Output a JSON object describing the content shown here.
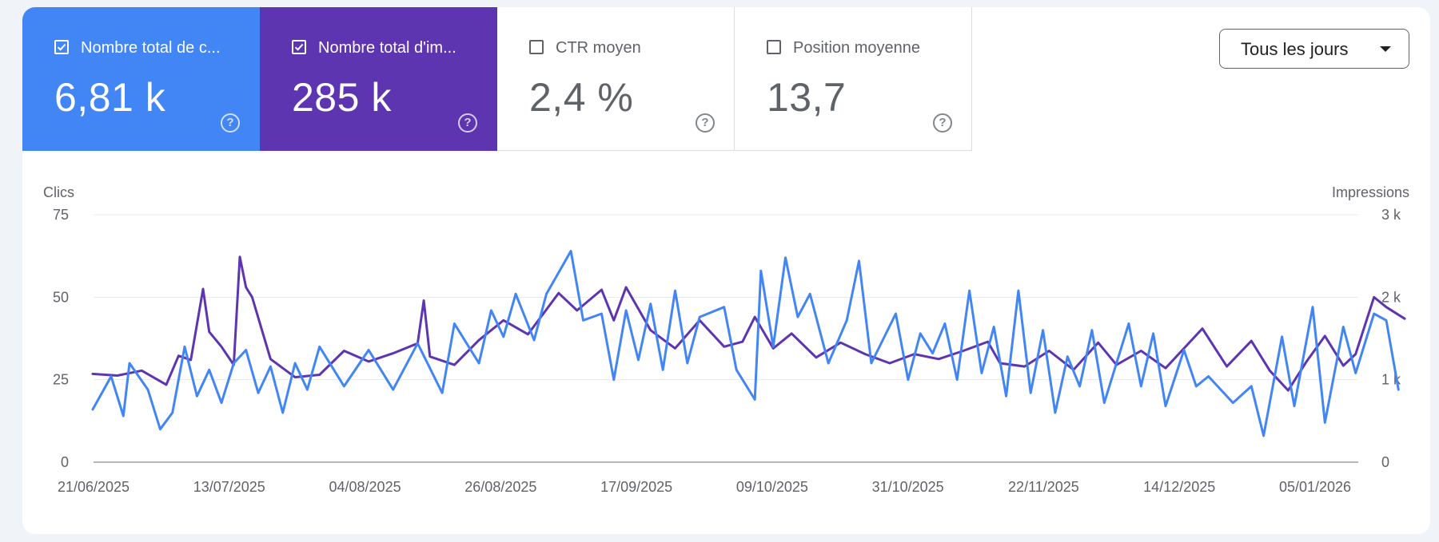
{
  "metrics": [
    {
      "label": "Nombre total de clics",
      "display_label": "Nombre total de c...",
      "value": "6,81 k",
      "checked": true,
      "color": "#4285f4"
    },
    {
      "label": "Nombre total d'impressions",
      "display_label": "Nombre total d'im...",
      "value": "285 k",
      "checked": true,
      "color": "#5e35b1"
    },
    {
      "label": "CTR moyen",
      "display_label": "CTR moyen",
      "value": "2,4 %",
      "checked": false
    },
    {
      "label": "Position moyenne",
      "display_label": "Position moyenne",
      "value": "13,7",
      "checked": false
    }
  ],
  "help_glyph": "?",
  "period_selector": {
    "label": "Tous les jours",
    "icon": "caret-down-icon"
  },
  "chart_data": {
    "type": "line",
    "left_axis": {
      "title": "Clics",
      "min": 0,
      "max": 75,
      "ticks": [
        "0",
        "25",
        "50",
        "75"
      ]
    },
    "right_axis": {
      "title": "Impressions",
      "min": 0,
      "max": 3000,
      "ticks": [
        "0",
        "1 k",
        "2 k",
        "3 k"
      ]
    },
    "x_start": "2025-06-21",
    "x_end": "2026-01-12",
    "x_tick_labels": [
      "21/06/2025",
      "13/07/2025",
      "04/08/2025",
      "26/08/2025",
      "17/09/2025",
      "09/10/2025",
      "31/10/2025",
      "22/11/2025",
      "14/12/2025",
      "05/01/2026"
    ],
    "grid": true,
    "series": [
      {
        "name": "Impressions",
        "axis": "right",
        "color": "#5e35b1",
        "keypoints": [
          [
            "2025-06-21",
            1070
          ],
          [
            "2025-06-25",
            1050
          ],
          [
            "2025-06-29",
            1110
          ],
          [
            "2025-07-03",
            940
          ],
          [
            "2025-07-05",
            1290
          ],
          [
            "2025-07-07",
            1240
          ],
          [
            "2025-07-09",
            2100
          ],
          [
            "2025-07-10",
            1580
          ],
          [
            "2025-07-12",
            1400
          ],
          [
            "2025-07-14",
            1180
          ],
          [
            "2025-07-15",
            2490
          ],
          [
            "2025-07-16",
            2120
          ],
          [
            "2025-07-17",
            2000
          ],
          [
            "2025-07-20",
            1250
          ],
          [
            "2025-07-24",
            1030
          ],
          [
            "2025-07-28",
            1060
          ],
          [
            "2025-08-01",
            1350
          ],
          [
            "2025-08-05",
            1220
          ],
          [
            "2025-08-09",
            1320
          ],
          [
            "2025-08-13",
            1440
          ],
          [
            "2025-08-14",
            1960
          ],
          [
            "2025-08-15",
            1280
          ],
          [
            "2025-08-19",
            1180
          ],
          [
            "2025-08-23",
            1480
          ],
          [
            "2025-08-27",
            1720
          ],
          [
            "2025-08-31",
            1550
          ],
          [
            "2025-09-05",
            2050
          ],
          [
            "2025-09-08",
            1840
          ],
          [
            "2025-09-12",
            2090
          ],
          [
            "2025-09-14",
            1720
          ],
          [
            "2025-09-16",
            2120
          ],
          [
            "2025-09-20",
            1600
          ],
          [
            "2025-09-24",
            1380
          ],
          [
            "2025-09-28",
            1720
          ],
          [
            "2025-10-02",
            1400
          ],
          [
            "2025-10-05",
            1460
          ],
          [
            "2025-10-07",
            1760
          ],
          [
            "2025-10-10",
            1380
          ],
          [
            "2025-10-13",
            1560
          ],
          [
            "2025-10-17",
            1270
          ],
          [
            "2025-10-21",
            1450
          ],
          [
            "2025-10-25",
            1310
          ],
          [
            "2025-10-29",
            1200
          ],
          [
            "2025-11-02",
            1310
          ],
          [
            "2025-11-06",
            1250
          ],
          [
            "2025-11-10",
            1350
          ],
          [
            "2025-11-14",
            1460
          ],
          [
            "2025-11-16",
            1200
          ],
          [
            "2025-11-20",
            1160
          ],
          [
            "2025-11-24",
            1350
          ],
          [
            "2025-11-28",
            1120
          ],
          [
            "2025-12-02",
            1450
          ],
          [
            "2025-12-05",
            1180
          ],
          [
            "2025-12-09",
            1350
          ],
          [
            "2025-12-13",
            1140
          ],
          [
            "2025-12-16",
            1380
          ],
          [
            "2025-12-19",
            1620
          ],
          [
            "2025-12-23",
            1160
          ],
          [
            "2025-12-27",
            1470
          ],
          [
            "2025-12-30",
            1110
          ],
          [
            "2026-01-02",
            870
          ],
          [
            "2026-01-05",
            1220
          ],
          [
            "2026-01-08",
            1530
          ],
          [
            "2026-01-11",
            1170
          ],
          [
            "2026-01-13",
            1310
          ],
          [
            "2026-01-16",
            2000
          ],
          [
            "2026-01-18",
            1880
          ],
          [
            "2026-01-21",
            1740
          ]
        ]
      },
      {
        "name": "Clics",
        "axis": "left",
        "color": "#4285f4",
        "keypoints": [
          [
            "2025-06-21",
            16
          ],
          [
            "2025-06-24",
            26
          ],
          [
            "2025-06-26",
            14
          ],
          [
            "2025-06-27",
            30
          ],
          [
            "2025-06-30",
            22
          ],
          [
            "2025-07-02",
            10
          ],
          [
            "2025-07-04",
            15
          ],
          [
            "2025-07-06",
            35
          ],
          [
            "2025-07-08",
            20
          ],
          [
            "2025-07-10",
            28
          ],
          [
            "2025-07-12",
            18
          ],
          [
            "2025-07-14",
            30
          ],
          [
            "2025-07-16",
            34
          ],
          [
            "2025-07-18",
            21
          ],
          [
            "2025-07-20",
            29
          ],
          [
            "2025-07-22",
            15
          ],
          [
            "2025-07-24",
            30
          ],
          [
            "2025-07-26",
            22
          ],
          [
            "2025-07-28",
            35
          ],
          [
            "2025-08-01",
            23
          ],
          [
            "2025-08-05",
            34
          ],
          [
            "2025-08-09",
            22
          ],
          [
            "2025-08-13",
            36
          ],
          [
            "2025-08-17",
            21
          ],
          [
            "2025-08-19",
            42
          ],
          [
            "2025-08-23",
            30
          ],
          [
            "2025-08-25",
            46
          ],
          [
            "2025-08-27",
            38
          ],
          [
            "2025-08-29",
            51
          ],
          [
            "2025-09-01",
            37
          ],
          [
            "2025-09-03",
            51
          ],
          [
            "2025-09-07",
            64
          ],
          [
            "2025-09-09",
            43
          ],
          [
            "2025-09-12",
            45
          ],
          [
            "2025-09-14",
            25
          ],
          [
            "2025-09-16",
            46
          ],
          [
            "2025-09-18",
            31
          ],
          [
            "2025-09-20",
            48
          ],
          [
            "2025-09-22",
            28
          ],
          [
            "2025-09-24",
            52
          ],
          [
            "2025-09-26",
            30
          ],
          [
            "2025-09-28",
            44
          ],
          [
            "2025-10-02",
            47
          ],
          [
            "2025-10-04",
            28
          ],
          [
            "2025-10-07",
            19
          ],
          [
            "2025-10-08",
            58
          ],
          [
            "2025-10-10",
            35
          ],
          [
            "2025-10-12",
            62
          ],
          [
            "2025-10-14",
            44
          ],
          [
            "2025-10-16",
            51
          ],
          [
            "2025-10-19",
            30
          ],
          [
            "2025-10-22",
            43
          ],
          [
            "2025-10-24",
            61
          ],
          [
            "2025-10-26",
            30
          ],
          [
            "2025-10-30",
            45
          ],
          [
            "2025-11-01",
            25
          ],
          [
            "2025-11-03",
            39
          ],
          [
            "2025-11-05",
            33
          ],
          [
            "2025-11-07",
            42
          ],
          [
            "2025-11-09",
            25
          ],
          [
            "2025-11-11",
            52
          ],
          [
            "2025-11-13",
            27
          ],
          [
            "2025-11-15",
            41
          ],
          [
            "2025-11-17",
            20
          ],
          [
            "2025-11-19",
            52
          ],
          [
            "2025-11-21",
            21
          ],
          [
            "2025-11-23",
            40
          ],
          [
            "2025-11-25",
            15
          ],
          [
            "2025-11-27",
            32
          ],
          [
            "2025-11-29",
            23
          ],
          [
            "2025-12-01",
            40
          ],
          [
            "2025-12-03",
            18
          ],
          [
            "2025-12-07",
            42
          ],
          [
            "2025-12-09",
            23
          ],
          [
            "2025-12-11",
            39
          ],
          [
            "2025-12-13",
            17
          ],
          [
            "2025-12-16",
            34
          ],
          [
            "2025-12-18",
            23
          ],
          [
            "2025-12-20",
            26
          ],
          [
            "2025-12-24",
            18
          ],
          [
            "2025-12-27",
            23
          ],
          [
            "2025-12-29",
            8
          ],
          [
            "2026-01-01",
            38
          ],
          [
            "2026-01-03",
            17
          ],
          [
            "2026-01-06",
            47
          ],
          [
            "2026-01-08",
            12
          ],
          [
            "2026-01-11",
            41
          ],
          [
            "2026-01-13",
            27
          ],
          [
            "2026-01-16",
            45
          ],
          [
            "2026-01-18",
            43
          ],
          [
            "2026-01-20",
            22
          ]
        ]
      }
    ]
  }
}
